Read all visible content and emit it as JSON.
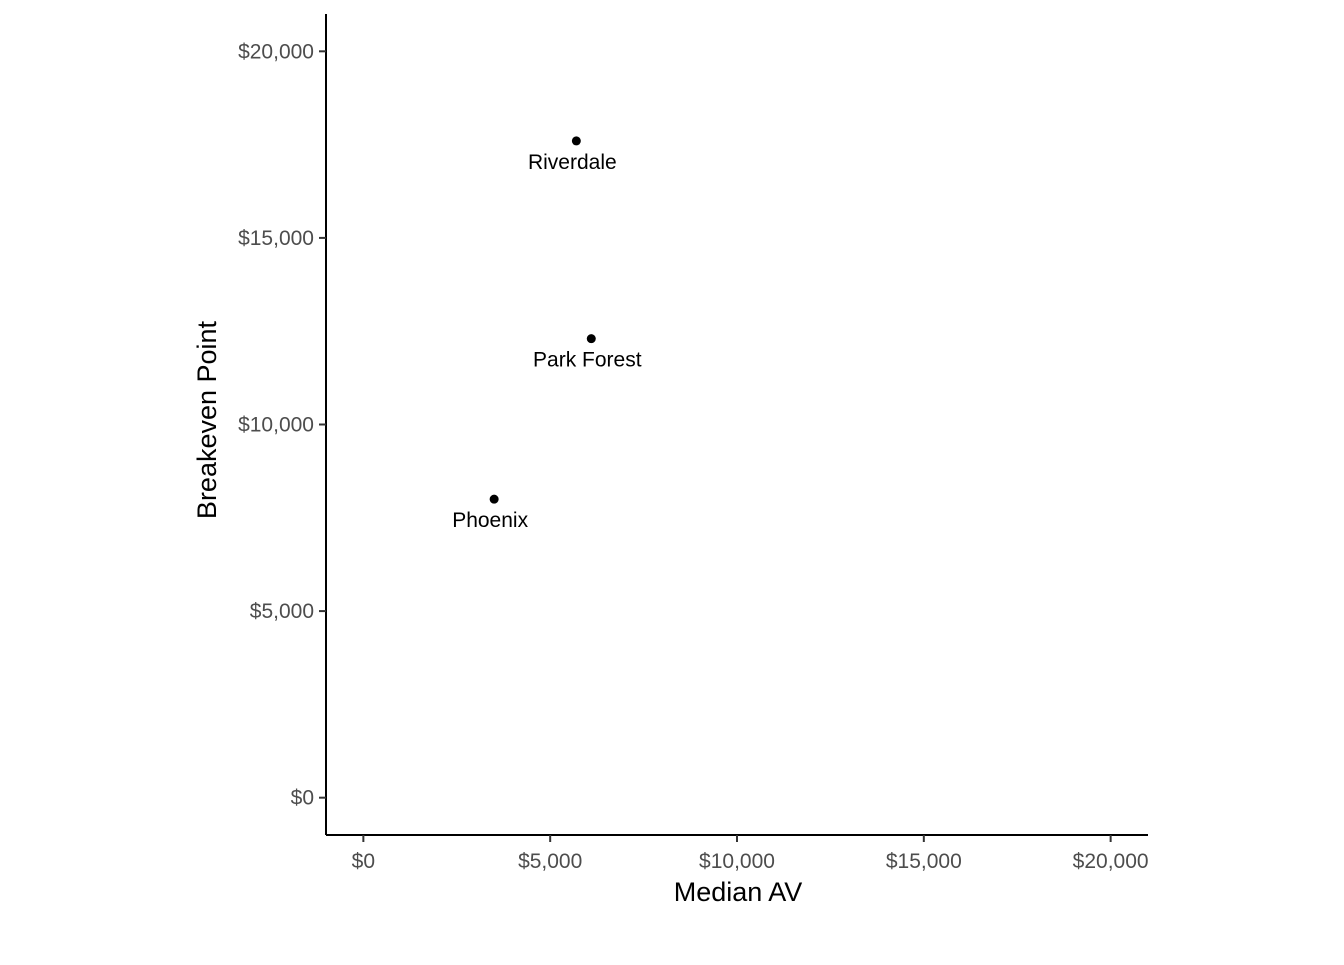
{
  "chart_data": {
    "type": "scatter",
    "title": "",
    "xlabel": "Median AV",
    "ylabel": "Breakeven Point",
    "xlim": [
      -1000,
      21000
    ],
    "ylim": [
      -1000,
      21000
    ],
    "x_ticks": [
      0,
      5000,
      10000,
      15000,
      20000
    ],
    "x_tick_labels": [
      "$0",
      "$5,000",
      "$10,000",
      "$15,000",
      "$20,000"
    ],
    "y_ticks": [
      0,
      5000,
      10000,
      15000,
      20000
    ],
    "y_tick_labels": [
      "$0",
      "$5,000",
      "$10,000",
      "$15,000",
      "$20,000"
    ],
    "grid": false,
    "legend": "none",
    "points": [
      {
        "label": "Riverdale",
        "x": 5700,
        "y": 17600
      },
      {
        "label": "Park Forest",
        "x": 6100,
        "y": 12300
      },
      {
        "label": "Phoenix",
        "x": 3500,
        "y": 8000
      }
    ],
    "colors": {
      "point": "#000000",
      "axis": "#000000",
      "tick_label": "#4d4d4d"
    }
  }
}
